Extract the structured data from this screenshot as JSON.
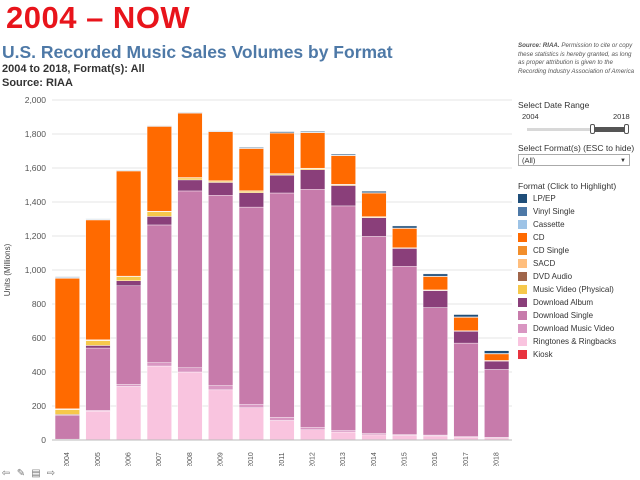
{
  "header": {
    "slide_title": "2004 – NOW",
    "viz_title": "U.S. Recorded Music Sales Volumes by Format",
    "subtitle": "2004 to 2018, Format(s): All",
    "source": "Source: RIAA"
  },
  "sidebar": {
    "copyright_source": "Source: RIAA.",
    "copyright_text": "Permission to cite or copy these statistics is hereby granted, as long as proper attribution is given to the Recording Industry Association of America",
    "date_range_label": "Select Date Range",
    "range_start": "2004",
    "range_end": "2018",
    "format_label": "Select Format(s) (ESC to hide)",
    "format_value": "(All)",
    "legend_title": "Format (Click to Highlight)"
  },
  "colors": {
    "LP/EP": "#1f4e79",
    "Vinyl Single": "#4e79a7",
    "Cassette": "#9dc3e6",
    "CD": "#ff6a00",
    "CD Single": "#f28e2b",
    "SACD": "#ffbe7d",
    "DVD Audio": "#a0654a",
    "Music Video (Physical)": "#f6c84b",
    "Download Album": "#8a3f7a",
    "Download Single": "#c77bab",
    "Download Music Video": "#d996c2",
    "Ringtones & Ringbacks": "#f9c4df",
    "Kiosk": "#e8333f"
  },
  "chart_data": {
    "type": "bar",
    "stacked": true,
    "title": "U.S. Recorded Music Sales Volumes by Format",
    "ylabel": "Units (Millions)",
    "xlabel": "",
    "ylim": [
      0,
      2000
    ],
    "yticks": [
      0,
      200,
      400,
      600,
      800,
      1000,
      1200,
      1400,
      1600,
      1800,
      2000
    ],
    "ytick_labels": [
      "0",
      "200",
      "400",
      "600",
      "800",
      "1,000",
      "1,200",
      "1,400",
      "1,600",
      "1,800",
      "2,000"
    ],
    "categories": [
      "2004",
      "2005",
      "2006",
      "2007",
      "2008",
      "2009",
      "2010",
      "2011",
      "2012",
      "2013",
      "2014",
      "2015",
      "2016",
      "2017",
      "2018"
    ],
    "series": [
      {
        "name": "Kiosk",
        "values": [
          0,
          0,
          0,
          0,
          0,
          0,
          0,
          0,
          0,
          2,
          2,
          2,
          2,
          2,
          1
        ]
      },
      {
        "name": "Ringtones & Ringbacks",
        "values": [
          5,
          170,
          315,
          435,
          400,
          295,
          190,
          115,
          60,
          45,
          28,
          25,
          22,
          15,
          12
        ]
      },
      {
        "name": "Download Music Video",
        "values": [
          0,
          5,
          12,
          20,
          25,
          25,
          20,
          18,
          15,
          10,
          8,
          5,
          5,
          3,
          2
        ]
      },
      {
        "name": "Download Single",
        "values": [
          140,
          366,
          580,
          810,
          1040,
          1120,
          1160,
          1320,
          1400,
          1320,
          1160,
          990,
          750,
          550,
          400
        ]
      },
      {
        "name": "Download Album",
        "values": [
          5,
          15,
          30,
          50,
          65,
          75,
          85,
          105,
          115,
          120,
          110,
          105,
          100,
          70,
          50
        ]
      },
      {
        "name": "Music Video (Physical)",
        "values": [
          30,
          30,
          25,
          28,
          13,
          9,
          9,
          8,
          8,
          6,
          5,
          3,
          3,
          2,
          2
        ]
      },
      {
        "name": "DVD Audio",
        "values": [
          0,
          0,
          0,
          0,
          0,
          0,
          0,
          0,
          0,
          0,
          0,
          0,
          0,
          0,
          0
        ]
      },
      {
        "name": "SACD",
        "values": [
          1,
          1,
          0,
          0,
          0,
          0,
          0,
          0,
          0,
          0,
          0,
          0,
          0,
          0,
          0
        ]
      },
      {
        "name": "CD Single",
        "values": [
          3,
          3,
          2,
          3,
          1,
          1,
          2,
          1,
          1,
          1,
          1,
          1,
          1,
          1,
          1
        ]
      },
      {
        "name": "CD",
        "values": [
          767,
          705,
          620,
          500,
          380,
          290,
          250,
          240,
          210,
          170,
          140,
          115,
          80,
          80,
          40
        ]
      },
      {
        "name": "Cassette",
        "values": [
          5,
          2,
          1,
          0,
          0,
          0,
          0,
          0,
          0,
          0,
          0,
          0,
          0,
          0,
          0
        ]
      },
      {
        "name": "Vinyl Single",
        "values": [
          4,
          3,
          1,
          1,
          1,
          1,
          1,
          1,
          1,
          1,
          1,
          1,
          1,
          1,
          1
        ]
      },
      {
        "name": "LP/EP",
        "values": [
          1,
          1,
          1,
          1,
          3,
          3,
          4,
          6,
          5,
          6,
          8,
          12,
          13,
          14,
          16
        ]
      }
    ],
    "legend_order": [
      "LP/EP",
      "Vinyl Single",
      "Cassette",
      "CD",
      "CD Single",
      "SACD",
      "DVD Audio",
      "Music Video (Physical)",
      "Download Album",
      "Download Single",
      "Download Music Video",
      "Ringtones & Ringbacks",
      "Kiosk"
    ],
    "legend_position": "right"
  },
  "toolbar": {
    "icons": [
      "undo-icon",
      "edit-icon",
      "view-data-icon",
      "share-icon"
    ]
  }
}
